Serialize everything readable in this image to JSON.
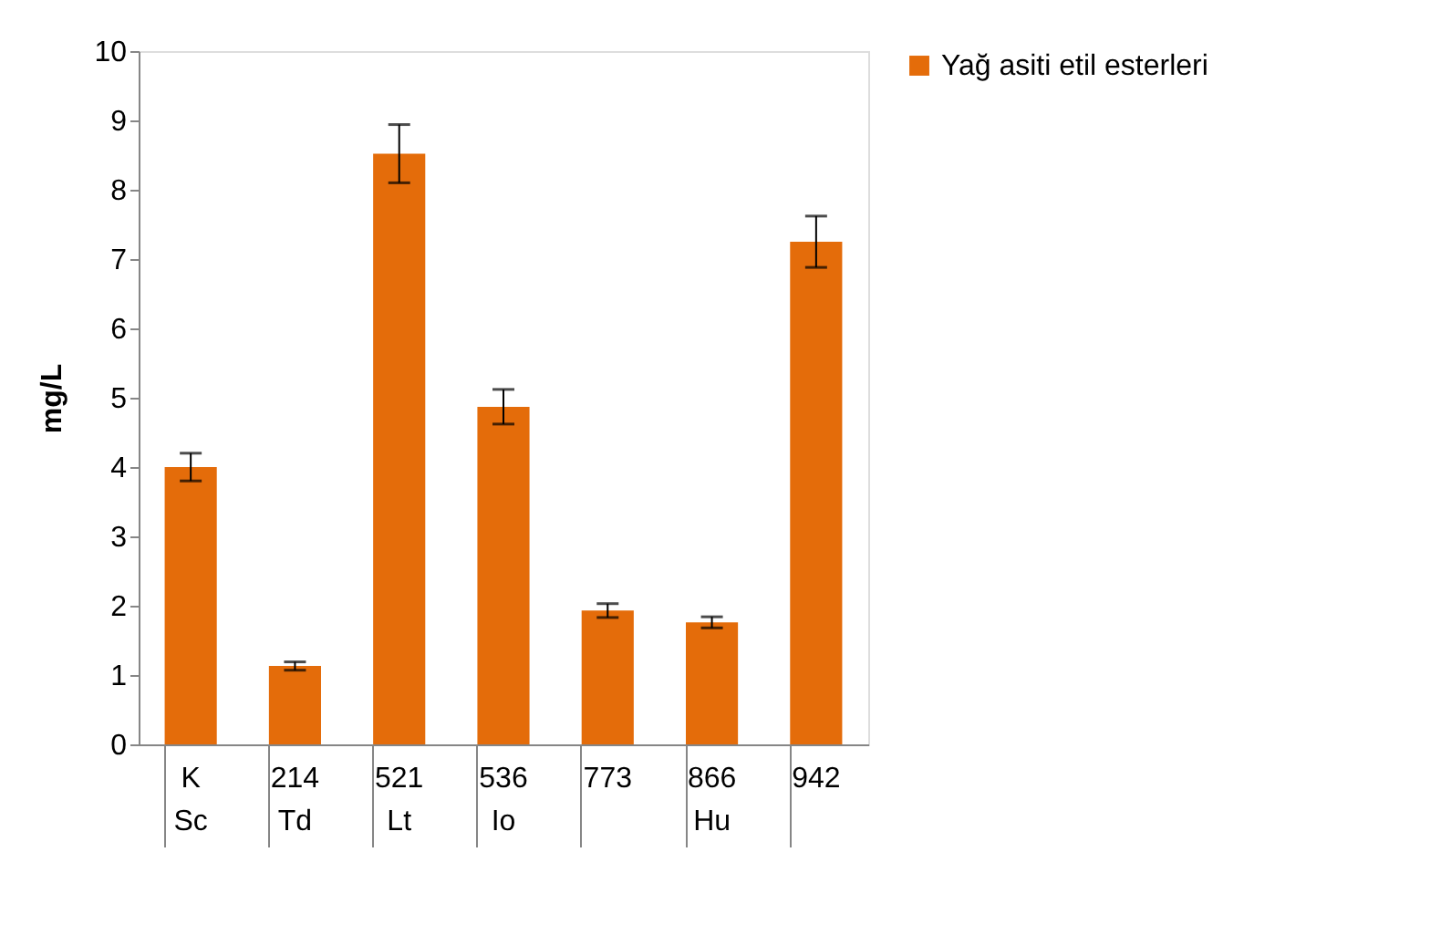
{
  "chart_data": {
    "type": "bar",
    "ylabel": "mg/L",
    "categories": [
      "K",
      "214",
      "521",
      "536",
      "773",
      "866",
      "942"
    ],
    "series": [
      {
        "name": "Yağ asiti etil esterleri",
        "color": "#e46c0a",
        "values": [
          4.0,
          1.13,
          8.52,
          4.87,
          1.93,
          1.76,
          7.25
        ],
        "errors": [
          0.2,
          0.06,
          0.42,
          0.25,
          0.1,
          0.08,
          0.37
        ]
      }
    ],
    "annotations": [
      "Sc",
      "Td",
      "Lt",
      "Io",
      "Hu"
    ],
    "ylim": [
      0,
      10
    ],
    "yticks": [
      0,
      1,
      2,
      3,
      4,
      5,
      6,
      7,
      8,
      9,
      10
    ],
    "grid": false,
    "legend": "top right"
  }
}
